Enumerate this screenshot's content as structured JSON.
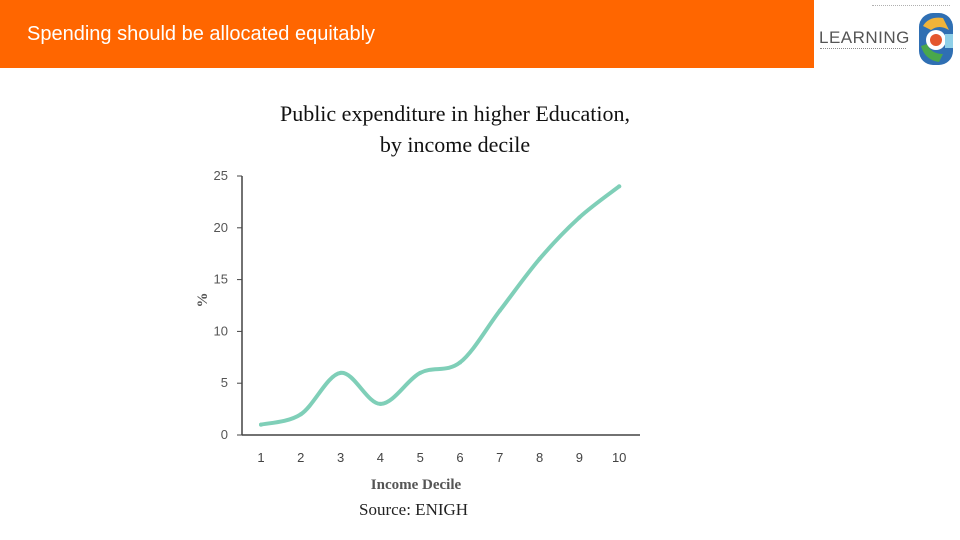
{
  "header": {
    "title": "Spending should be allocated equitably",
    "bar_color": "#ff6600"
  },
  "logo": {
    "wordmark": "LEARNING",
    "icon": "learning-logo-emblem"
  },
  "chart_data": {
    "type": "line",
    "title_line1": "Public expenditure in higher Education,",
    "title_line2": "by income decile",
    "xlabel": "Income Decile",
    "ylabel": "%",
    "x": [
      1,
      2,
      3,
      4,
      5,
      6,
      7,
      8,
      9,
      10
    ],
    "series": [
      {
        "values": [
          1,
          2,
          6,
          3,
          6,
          7,
          12,
          17,
          21,
          24
        ],
        "color": "#7fcfb8"
      }
    ],
    "xticks": [
      "1",
      "2",
      "3",
      "4",
      "5",
      "6",
      "7",
      "8",
      "9",
      "10"
    ],
    "yticks": [
      "0",
      "5",
      "10",
      "15",
      "20",
      "25"
    ],
    "ylim": [
      0,
      25
    ],
    "grid": false
  },
  "source": "Source: ENIGH"
}
